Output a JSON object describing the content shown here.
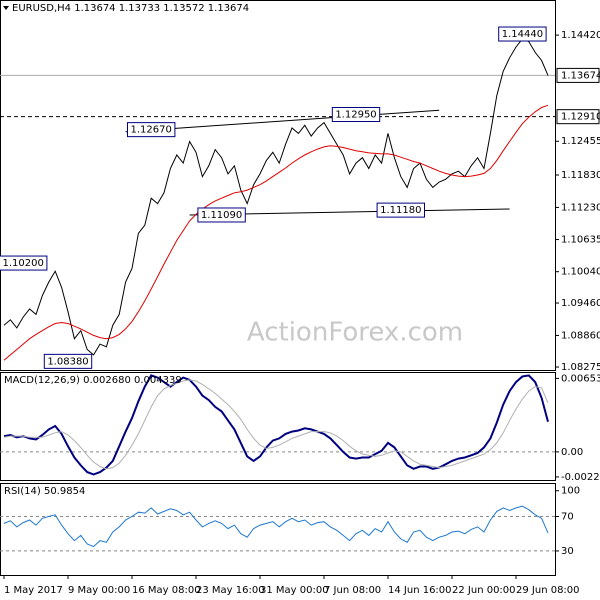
{
  "chart_data": [
    {
      "type": "line",
      "title": "EURUSD,H4  1.13674 1.13733 1.13572 1.13674",
      "watermark": "ActionForex.com",
      "ylim": [
        1.0822,
        1.1507
      ],
      "yticks": [
        {
          "value": 1.1442,
          "label": "1.14420"
        },
        {
          "value": 1.12455,
          "label": "1.12455"
        },
        {
          "value": 1.1183,
          "label": "1.11830"
        },
        {
          "value": 1.1123,
          "label": "1.11230"
        },
        {
          "value": 1.10635,
          "label": "1.10635"
        },
        {
          "value": 1.1004,
          "label": "1.10040"
        },
        {
          "value": 1.0946,
          "label": "1.09460"
        },
        {
          "value": 1.0886,
          "label": "1.08860"
        },
        {
          "value": 1.08275,
          "label": "1.08275"
        }
      ],
      "series": [
        {
          "color": "#000000",
          "values": [
            1.0905,
            1.0915,
            1.09,
            1.092,
            1.0935,
            1.0925,
            1.096,
            1.0985,
            1.1005,
            1.0975,
            1.093,
            1.088,
            1.0895,
            1.086,
            1.085,
            1.087,
            1.0865,
            1.0905,
            1.0925,
            1.0985,
            1.101,
            1.1075,
            1.109,
            1.114,
            1.113,
            1.115,
            1.1195,
            1.122,
            1.1205,
            1.1245,
            1.1225,
            1.118,
            1.12,
            1.123,
            1.1215,
            1.1185,
            1.12,
            1.1155,
            1.113,
            1.1165,
            1.1185,
            1.121,
            1.1225,
            1.1205,
            1.124,
            1.127,
            1.126,
            1.1275,
            1.1255,
            1.127,
            1.128,
            1.126,
            1.124,
            1.122,
            1.1185,
            1.1205,
            1.1215,
            1.1195,
            1.122,
            1.1205,
            1.126,
            1.1215,
            1.118,
            1.116,
            1.1195,
            1.1205,
            1.1175,
            1.116,
            1.117,
            1.1175,
            1.1185,
            1.119,
            1.118,
            1.12,
            1.1215,
            1.1195,
            1.126,
            1.133,
            1.1375,
            1.14,
            1.142,
            1.1435,
            1.143,
            1.141,
            1.1395,
            1.13674
          ]
        },
        {
          "color": "#e00000",
          "values": [
            1.084,
            1.085,
            1.086,
            1.087,
            1.088,
            1.0888,
            1.0895,
            1.0902,
            1.0908,
            1.091,
            1.0908,
            1.0903,
            1.0898,
            1.0892,
            1.0886,
            1.0882,
            1.088,
            1.0882,
            1.0888,
            1.0898,
            1.0912,
            1.093,
            1.095,
            1.0972,
            1.0995,
            1.1018,
            1.104,
            1.1062,
            1.108,
            1.1098,
            1.111,
            1.112,
            1.1128,
            1.1135,
            1.114,
            1.1145,
            1.115,
            1.1152,
            1.1155,
            1.116,
            1.1165,
            1.1172,
            1.118,
            1.1188,
            1.1196,
            1.1205,
            1.1213,
            1.122,
            1.1226,
            1.1231,
            1.1235,
            1.1237,
            1.1236,
            1.1234,
            1.1231,
            1.1228,
            1.1226,
            1.1224,
            1.1223,
            1.1222,
            1.1222,
            1.122,
            1.1216,
            1.1212,
            1.1208,
            1.1205,
            1.12,
            1.1195,
            1.119,
            1.1186,
            1.1183,
            1.1181,
            1.118,
            1.1181,
            1.1183,
            1.1186,
            1.1195,
            1.121,
            1.1228,
            1.1245,
            1.1262,
            1.1278,
            1.129,
            1.13,
            1.1308,
            1.1312
          ]
        }
      ],
      "price_lines": [
        {
          "value": 1.13674,
          "label": "1.13674",
          "style": "solid"
        },
        {
          "value": 1.1291,
          "label": "1.12910",
          "style": "dashed"
        }
      ],
      "trendlines": [
        {
          "x": [
            19,
            68
          ],
          "values": [
            1.1263,
            1.1303
          ]
        },
        {
          "x": [
            29,
            79
          ],
          "values": [
            1.1109,
            1.112
          ]
        }
      ],
      "annotations": [
        {
          "value": 1.1444,
          "label": "1.14440",
          "x": 81
        },
        {
          "value": 1.1267,
          "label": "1.12670",
          "x": 23
        },
        {
          "value": 1.1295,
          "label": "1.12950",
          "x": 55
        },
        {
          "value": 1.1109,
          "label": "1.11090",
          "x": 34
        },
        {
          "value": 1.1118,
          "label": "1.11180",
          "x": 62
        },
        {
          "value": 1.102,
          "label": "1.10200",
          "x": 3
        },
        {
          "value": 1.0838,
          "label": "1.08380",
          "x": 10
        }
      ]
    },
    {
      "type": "line",
      "title": "MACD(12,26,9) 0.002680 0.004339",
      "ylim": [
        -0.0025,
        0.0071
      ],
      "yticks": [
        0.006534,
        {
          "value": 0,
          "label": "0.00"
        },
        -0.002226
      ],
      "levels": [
        0
      ],
      "series": [
        {
          "color": "#000080",
          "width": 2,
          "values": [
            0.0014,
            0.0015,
            0.0013,
            0.0014,
            0.0012,
            0.0011,
            0.0015,
            0.002,
            0.0023,
            0.0016,
            0.0005,
            -0.0005,
            -0.0012,
            -0.0018,
            -0.002,
            -0.0018,
            -0.0014,
            -0.0008,
            0.0005,
            0.0018,
            0.003,
            0.0045,
            0.0058,
            0.0068,
            0.0066,
            0.0062,
            0.0058,
            0.0062,
            0.0066,
            0.0064,
            0.0058,
            0.005,
            0.0046,
            0.004,
            0.0036,
            0.0028,
            0.002,
            0.0008,
            -0.0004,
            -0.0008,
            -0.0004,
            0.0004,
            0.001,
            0.0012,
            0.0016,
            0.0018,
            0.0019,
            0.0021,
            0.002,
            0.0018,
            0.0016,
            0.0012,
            0.0006,
            0.0,
            -0.0005,
            -0.0006,
            -0.0005,
            -0.0005,
            -0.0002,
            0.0001,
            0.0008,
            0.0004,
            -0.0004,
            -0.0012,
            -0.0015,
            -0.0013,
            -0.0013,
            -0.0015,
            -0.0014,
            -0.0011,
            -0.0008,
            -0.0006,
            -0.0005,
            -0.0003,
            -0.0001,
            0.0004,
            0.0012,
            0.0026,
            0.0042,
            0.0054,
            0.0062,
            0.0067,
            0.0068,
            0.0062,
            0.0048,
            0.00268
          ]
        },
        {
          "color": "#b0b0b0",
          "width": 1,
          "values": [
            0.0013,
            0.0014,
            0.0014,
            0.0014,
            0.0013,
            0.0013,
            0.0013,
            0.0015,
            0.0017,
            0.0018,
            0.0015,
            0.001,
            0.0004,
            -0.0003,
            -0.0009,
            -0.0013,
            -0.0015,
            -0.0014,
            -0.001,
            -0.0003,
            0.0006,
            0.0016,
            0.0028,
            0.004,
            0.005,
            0.0056,
            0.0059,
            0.0061,
            0.0063,
            0.0064,
            0.0063,
            0.006,
            0.0056,
            0.0052,
            0.0047,
            0.0042,
            0.0036,
            0.0029,
            0.002,
            0.0012,
            0.0006,
            0.0003,
            0.0004,
            0.0006,
            0.0009,
            0.0012,
            0.0014,
            0.0016,
            0.0018,
            0.0018,
            0.0018,
            0.0017,
            0.0014,
            0.001,
            0.0005,
            0.0001,
            -0.0002,
            -0.0003,
            -0.0004,
            -0.0003,
            -0.0001,
            0.0001,
            0.0,
            -0.0004,
            -0.0008,
            -0.0011,
            -0.0012,
            -0.0013,
            -0.0014,
            -0.0013,
            -0.0012,
            -0.001,
            -0.0008,
            -0.0006,
            -0.0004,
            -0.0002,
            0.0002,
            0.0008,
            0.0017,
            0.0028,
            0.0038,
            0.0047,
            0.0054,
            0.0058,
            0.0057,
            0.004339
          ]
        }
      ]
    },
    {
      "type": "line",
      "title": "RSI(14) 50.9854",
      "ylim": [
        2,
        109
      ],
      "yticks": [
        100,
        70,
        30
      ],
      "levels": [
        70,
        30
      ],
      "series": [
        {
          "color": "#1e78d0",
          "width": 1,
          "values": [
            62,
            65,
            58,
            63,
            66,
            60,
            68,
            70,
            72,
            60,
            50,
            42,
            48,
            38,
            35,
            42,
            40,
            52,
            58,
            66,
            70,
            75,
            74,
            80,
            73,
            76,
            79,
            77,
            72,
            75,
            66,
            58,
            62,
            65,
            62,
            56,
            60,
            50,
            46,
            56,
            60,
            62,
            64,
            58,
            64,
            68,
            64,
            66,
            60,
            63,
            64,
            58,
            54,
            48,
            42,
            50,
            54,
            48,
            56,
            52,
            64,
            52,
            44,
            40,
            52,
            54,
            46,
            42,
            46,
            48,
            52,
            53,
            50,
            55,
            58,
            52,
            66,
            76,
            80,
            77,
            80,
            82,
            78,
            72,
            68,
            50.9854
          ]
        }
      ],
      "categories": [
        "1 May 2017",
        null,
        null,
        null,
        null,
        null,
        null,
        null,
        null,
        null,
        "9 May 00:00",
        null,
        null,
        null,
        null,
        null,
        null,
        null,
        null,
        null,
        "16 May 08:00",
        null,
        null,
        null,
        null,
        null,
        null,
        null,
        null,
        null,
        "23 May 16:00",
        null,
        null,
        null,
        null,
        null,
        null,
        null,
        null,
        null,
        "31 May 00:00",
        null,
        null,
        null,
        null,
        null,
        null,
        null,
        null,
        null,
        "7 Jun 08:00",
        null,
        null,
        null,
        null,
        null,
        null,
        null,
        null,
        null,
        "14 Jun 16:00",
        null,
        null,
        null,
        null,
        null,
        null,
        null,
        null,
        null,
        "22 Jun 00:00",
        null,
        null,
        null,
        null,
        null,
        null,
        null,
        null,
        null,
        "29 Jun 08:00",
        null,
        null,
        null,
        null,
        null
      ]
    }
  ]
}
